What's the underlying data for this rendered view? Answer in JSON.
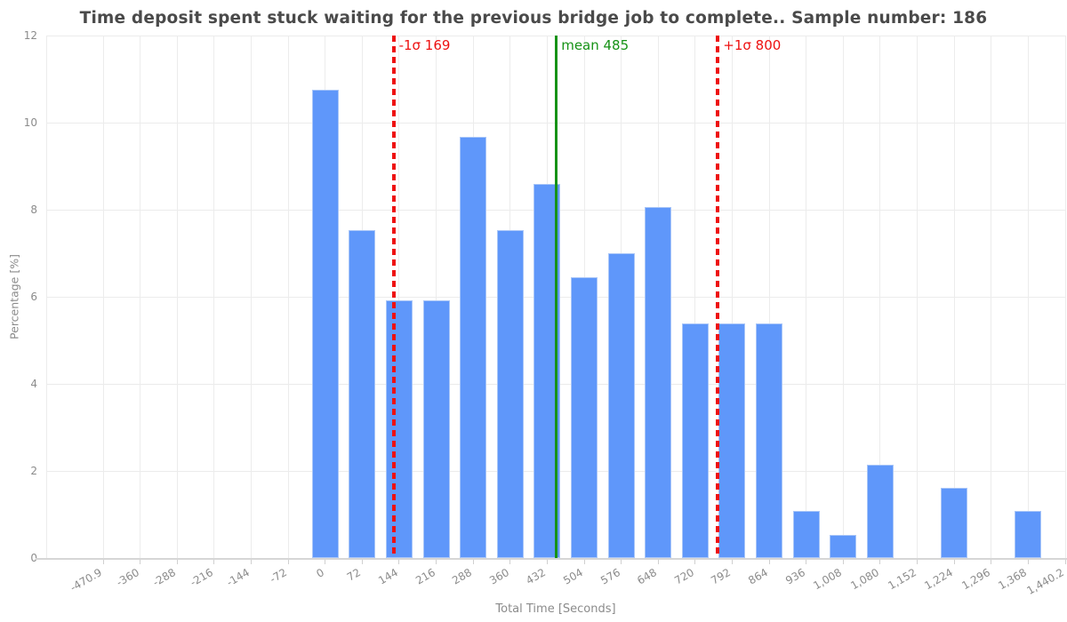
{
  "chart_data": {
    "type": "bar",
    "title": "Time deposit spent stuck waiting for the previous bridge job to complete.. Sample number: 186",
    "sample_number": 186,
    "xlabel": "Total Time [Seconds]",
    "ylabel": "Percentage [%]",
    "ylim": [
      0,
      12
    ],
    "yticks": [
      "0",
      "2",
      "4",
      "6",
      "8",
      "10",
      "12"
    ],
    "grid": "on",
    "legend": "none",
    "xticklabels": [
      "-470.9",
      "-360",
      "-288",
      "-216",
      "-144",
      "-72",
      "0",
      "72",
      "144",
      "216",
      "288",
      "360",
      "432",
      "504",
      "576",
      "648",
      "720",
      "792",
      "864",
      "936",
      "1,008",
      "1,080",
      "1,152",
      "1,224",
      "1,296",
      "1,368",
      "1,440.2"
    ],
    "bin_width_seconds": 72,
    "values_pct_by_tick": [
      null,
      null,
      null,
      null,
      null,
      null,
      10.75,
      7.53,
      5.91,
      5.91,
      9.68,
      7.53,
      8.6,
      6.45,
      6.99,
      8.06,
      5.38,
      5.38,
      5.38,
      1.08,
      0.54,
      2.15,
      0,
      1.61,
      0,
      1.08,
      0
    ],
    "bar_color": "#5f97fa",
    "lines": [
      {
        "name": "minus-one-sigma",
        "label": "-1σ 169",
        "value": 169,
        "color": "#ee1111",
        "style": "dashed"
      },
      {
        "name": "mean",
        "label": "mean 485",
        "value": 485,
        "color": "#169216",
        "style": "solid"
      },
      {
        "name": "plus-one-sigma",
        "label": "+1σ 800",
        "value": 800,
        "color": "#ee1111",
        "style": "dashed"
      }
    ]
  }
}
